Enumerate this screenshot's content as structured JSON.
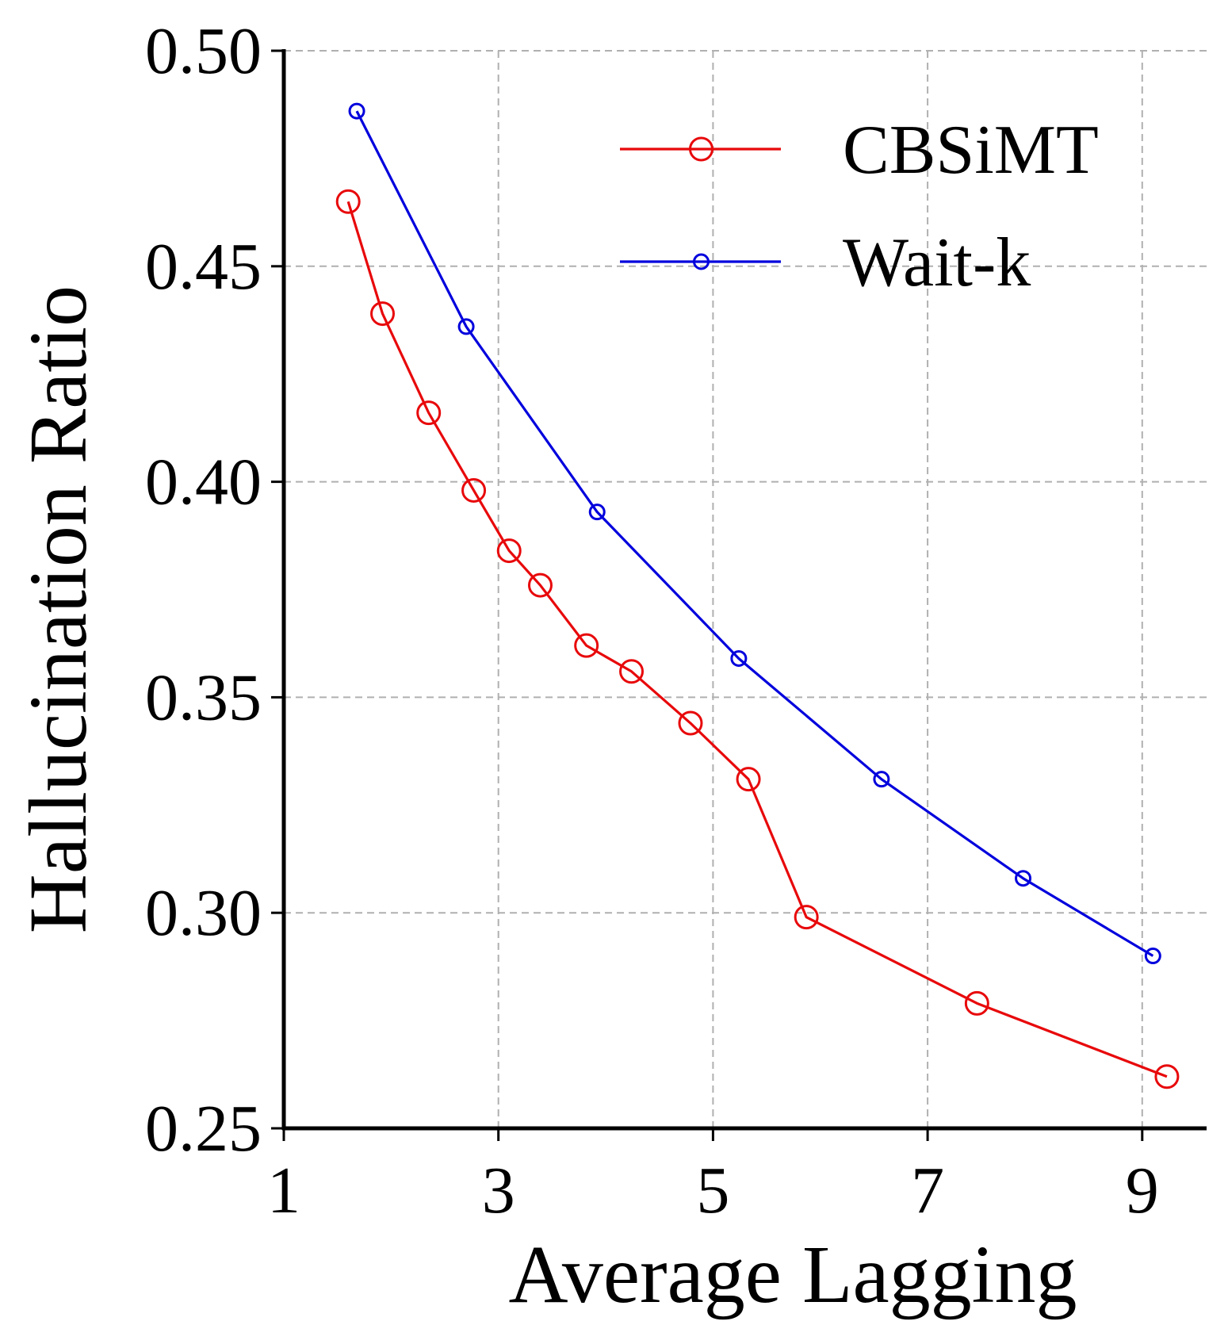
{
  "chart_data": {
    "type": "line",
    "title": "",
    "xlabel": "Average Lagging",
    "ylabel": "Hallucination Ratio",
    "xlim": [
      1,
      9.6
    ],
    "ylim": [
      0.25,
      0.5
    ],
    "xticks": [
      1,
      3,
      5,
      7,
      9
    ],
    "xtick_labels": [
      "1",
      "3",
      "5",
      "7",
      "9"
    ],
    "yticks": [
      0.25,
      0.3,
      0.35,
      0.4,
      0.45,
      0.5
    ],
    "ytick_labels": [
      "0.25",
      "0.30",
      "0.35",
      "0.40",
      "0.45",
      "0.50"
    ],
    "grid": true,
    "legend_position": "top-right",
    "series": [
      {
        "name": "CBSiMT",
        "color": "#e8090b",
        "marker": "open-circle-large",
        "x": [
          1.6,
          1.92,
          2.35,
          2.77,
          3.1,
          3.39,
          3.82,
          4.24,
          4.79,
          5.33,
          5.87,
          7.46,
          9.23
        ],
        "y": [
          0.465,
          0.439,
          0.416,
          0.398,
          0.384,
          0.376,
          0.362,
          0.356,
          0.344,
          0.331,
          0.299,
          0.279,
          0.262
        ]
      },
      {
        "name": "Wait-k",
        "color": "#0000dd",
        "marker": "open-circle-small",
        "x": [
          1.68,
          2.7,
          3.92,
          5.24,
          6.57,
          7.89,
          9.1
        ],
        "y": [
          0.486,
          0.436,
          0.393,
          0.359,
          0.331,
          0.308,
          0.29
        ]
      }
    ]
  }
}
